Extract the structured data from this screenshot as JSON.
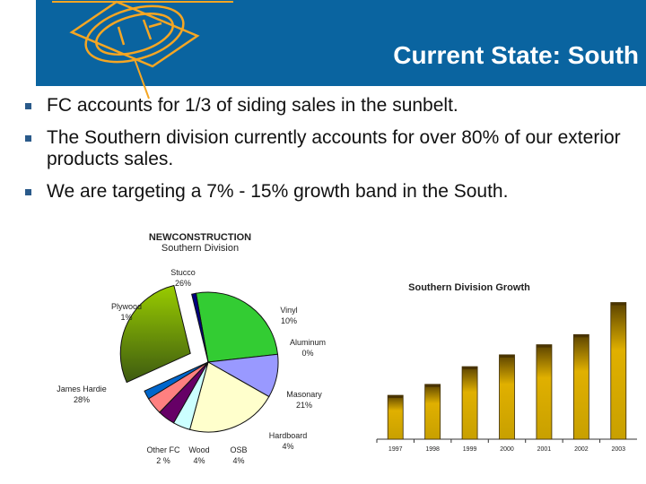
{
  "header": {
    "title": "Current State: South",
    "brand_color": "#0a64a0",
    "logo_color": "#f5a623"
  },
  "bullets": [
    "FC accounts for 1/3 of siding sales in the sunbelt.",
    "The Southern division currently accounts for over 80% of our exterior products sales.",
    "We are targeting a 7% - 15% growth band in the South."
  ],
  "chart_data": [
    {
      "type": "pie",
      "title": "NEWCONSTRUCTION",
      "subtitle": "Southern Division",
      "slices": [
        {
          "label": "Stucco",
          "pct": "26%",
          "value": 26,
          "color": "#33cc33"
        },
        {
          "label": "Vinyl",
          "pct": "10%",
          "value": 10,
          "color": "#9999ff"
        },
        {
          "label": "Aluminum",
          "pct": "0%",
          "value": 0,
          "color": "#993366"
        },
        {
          "label": "Masonary",
          "pct": "21%",
          "value": 21,
          "color": "#ffffcc"
        },
        {
          "label": "Hardboard",
          "pct": "4%",
          "value": 4,
          "color": "#ccffff"
        },
        {
          "label": "OSB",
          "pct": "4%",
          "value": 4,
          "color": "#660066"
        },
        {
          "label": "Wood",
          "pct": "4%",
          "value": 4,
          "color": "#ff8080"
        },
        {
          "label": "Other FC",
          "pct": "2 %",
          "value": 2,
          "color": "#0066cc"
        },
        {
          "label": "James Hardie",
          "pct": "28%",
          "value": 28,
          "color": "#6b8e23",
          "exploded": true
        },
        {
          "label": "Plywood",
          "pct": "1%",
          "value": 1,
          "color": "#000080"
        }
      ]
    },
    {
      "type": "bar",
      "title": "Southern Division Growth",
      "categories": [
        "1997",
        "1998",
        "1999",
        "2000",
        "2001",
        "2002",
        "2003"
      ],
      "values": [
        52,
        65,
        86,
        100,
        112,
        124,
        162
      ],
      "ylim": [
        0,
        170
      ],
      "color": "#e0b000"
    }
  ]
}
